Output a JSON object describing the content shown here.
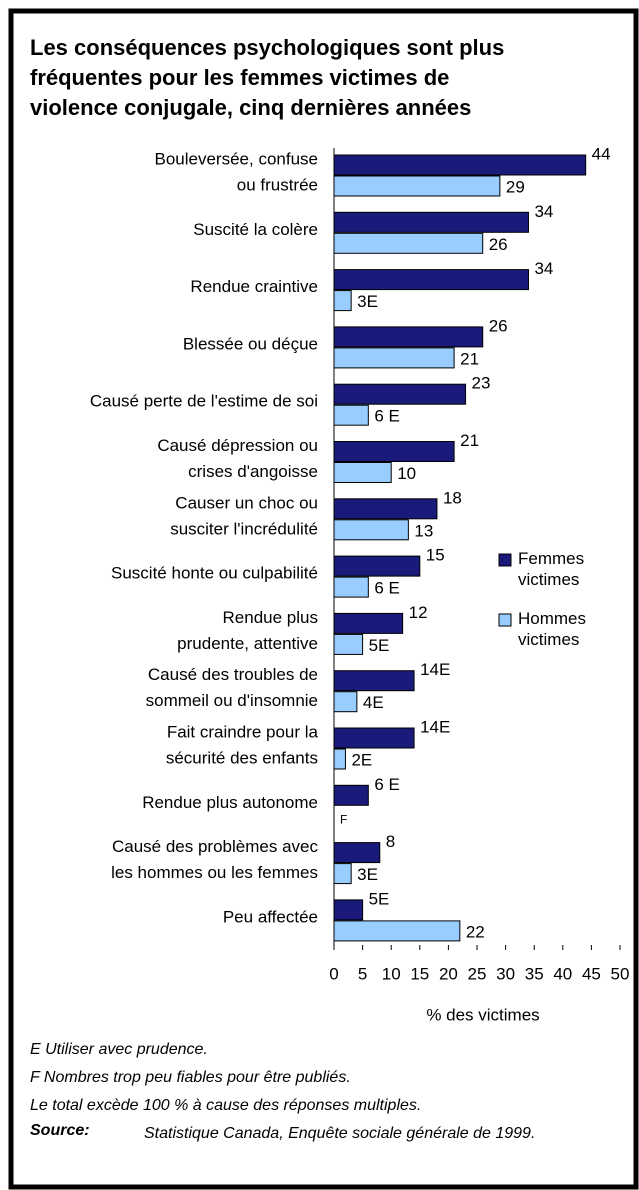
{
  "chart_data": {
    "type": "barh",
    "title": [
      "Les conséquences psychologiques sont plus",
      "fréquentes pour les femmes victimes de",
      "violence conjugale, cinq dernières années"
    ],
    "categories": [
      [
        "Bouleversée, confuse",
        "ou frustrée"
      ],
      [
        "Suscité la colère"
      ],
      [
        "Rendue craintive"
      ],
      [
        "Blessée ou déçue"
      ],
      [
        "Causé perte de l'estime de soi"
      ],
      [
        "Causé dépression ou",
        "crises d'angoisse"
      ],
      [
        "Causer un choc ou",
        "susciter l'incrédulité"
      ],
      [
        "Suscité honte ou culpabilité"
      ],
      [
        "Rendue plus",
        "prudente, attentive"
      ],
      [
        "Causé des troubles de",
        "sommeil ou d'insomnie"
      ],
      [
        "Fait craindre pour la",
        "sécurité des enfants"
      ],
      [
        "Rendue plus autonome"
      ],
      [
        "Causé des problèmes avec",
        "les hommes ou les femmes"
      ],
      [
        "Peu affectée"
      ]
    ],
    "series": [
      {
        "name": "Femmes victimes",
        "color": "#1a1a7a",
        "values": [
          44,
          34,
          34,
          26,
          23,
          21,
          18,
          15,
          12,
          14,
          14,
          6,
          8,
          5
        ],
        "value_labels": [
          "44",
          "34",
          "34",
          "26",
          "23",
          "21",
          "18",
          "15",
          "12",
          "14E",
          "14E",
          "6 E",
          "8",
          "5E"
        ]
      },
      {
        "name": "Hommes victimes",
        "color": "#99ccff",
        "values": [
          29,
          26,
          3,
          21,
          6,
          10,
          13,
          6,
          5,
          4,
          2,
          null,
          3,
          22
        ],
        "value_labels": [
          "29",
          "26",
          "3E",
          "21",
          "6 E",
          "10",
          "13",
          "6 E",
          "5E",
          "4E",
          "2E",
          "F",
          "3E",
          "22"
        ]
      }
    ],
    "xlim": [
      0,
      50
    ],
    "xticks": [
      0,
      5,
      10,
      15,
      20,
      25,
      30,
      35,
      40,
      45,
      50
    ],
    "xlabel": "% des victimes",
    "notes": [
      "E  Utiliser avec prudence.",
      "F  Nombres trop peu fiables pour être publiés.",
      "Le total excède 100 % à cause des réponses multiples."
    ],
    "source": {
      "label": "Source:",
      "text": "Statistique Canada, Enquête sociale générale de 1999."
    }
  }
}
